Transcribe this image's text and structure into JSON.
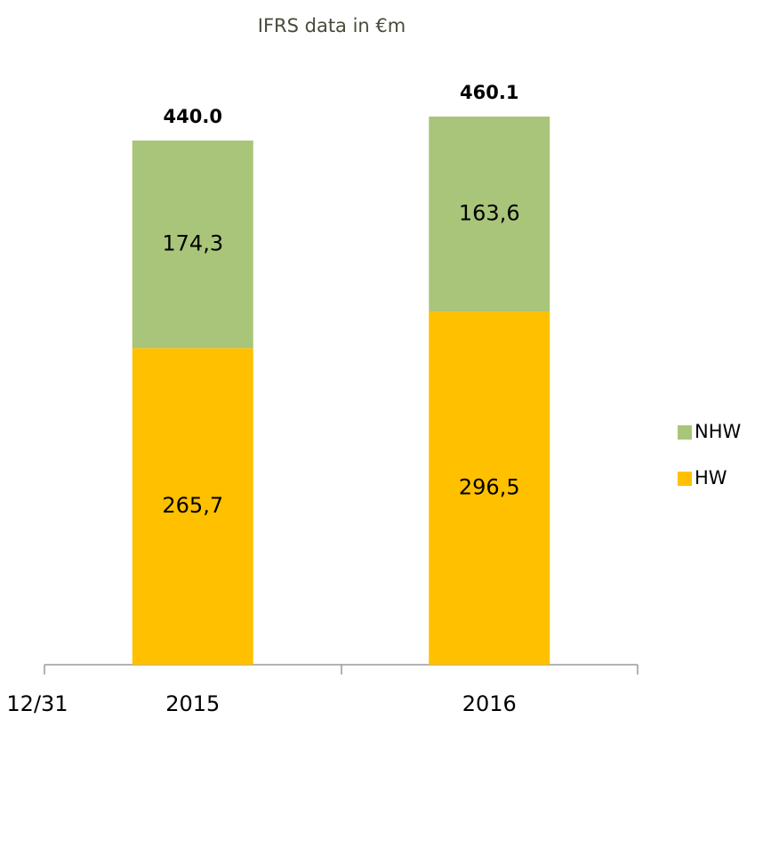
{
  "chart_data": {
    "type": "stacked_bar",
    "title": "IFRS data in €m",
    "xlabel": "12/31",
    "categories": [
      "2015",
      "2016"
    ],
    "series": [
      {
        "name": "HW",
        "color": "#FFC000",
        "values": [
          265.7,
          296.5
        ],
        "value_labels": [
          "265,7",
          "296,5"
        ]
      },
      {
        "name": "NHW",
        "color": "#A9C57A",
        "values": [
          174.3,
          163.6
        ],
        "value_labels": [
          "174,3",
          "163,6"
        ]
      }
    ],
    "totals": {
      "values": [
        440,
        460.1
      ],
      "value_labels": [
        "440.0",
        "460.1"
      ]
    },
    "legend": "right"
  }
}
